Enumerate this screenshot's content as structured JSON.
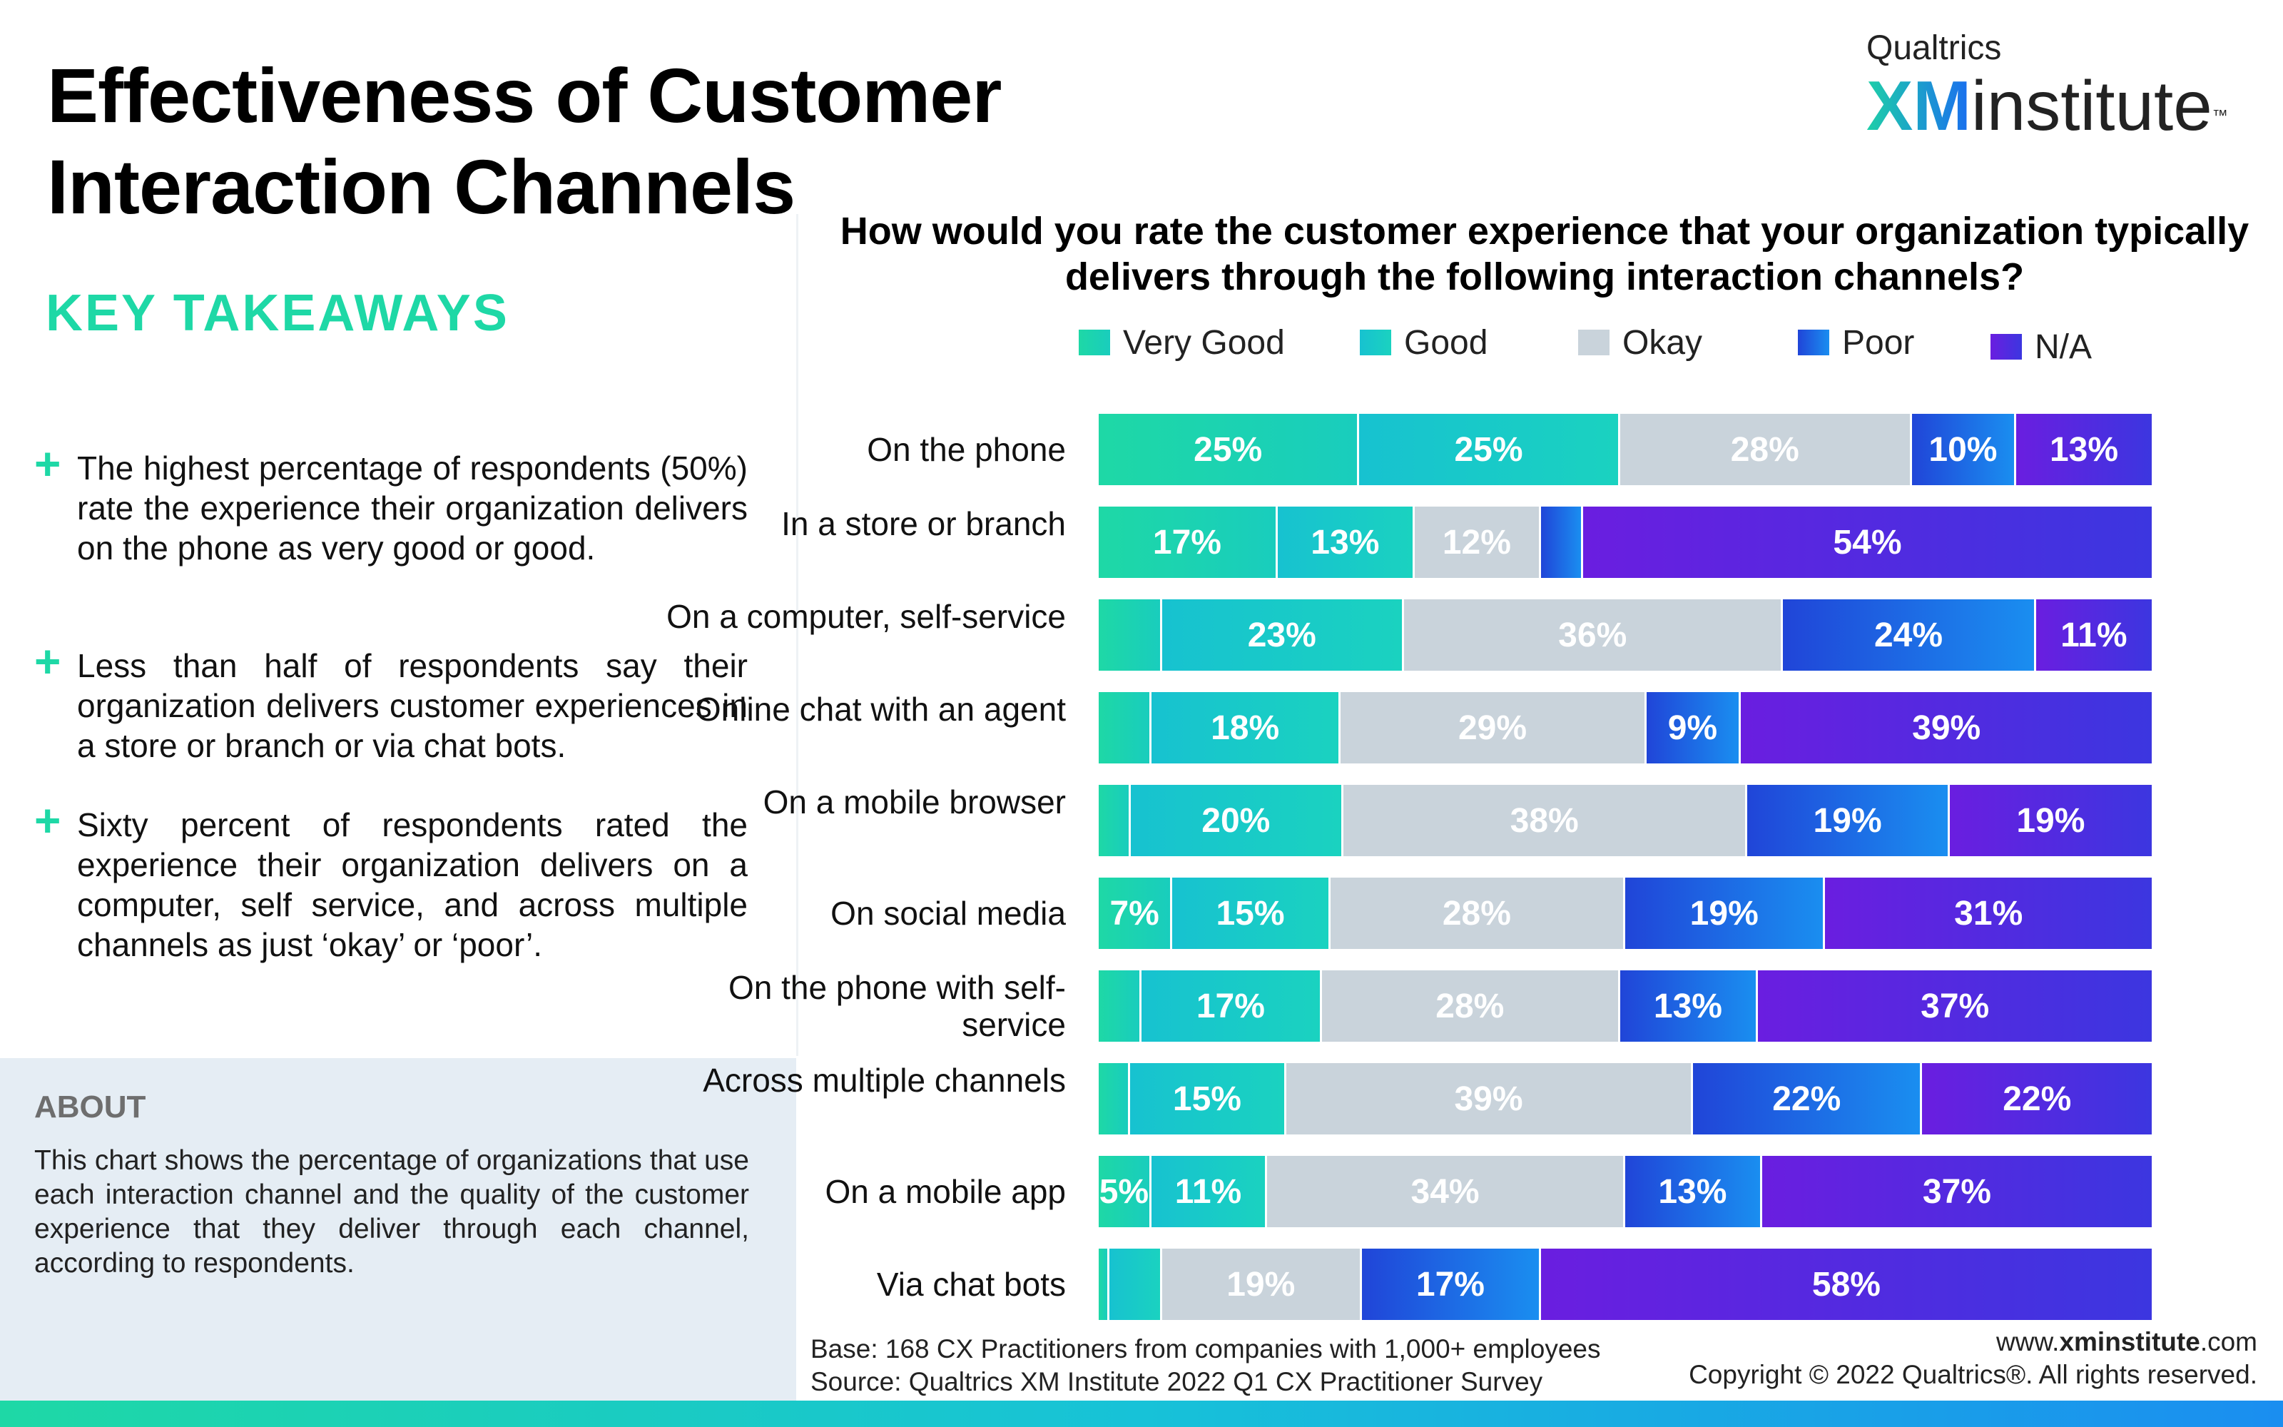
{
  "title": "Effectiveness of Customer Interaction Channels",
  "logo": {
    "brand_line": "Qualtrics",
    "xm": "XM",
    "word": "institute",
    "tm": "™"
  },
  "takeaways": {
    "heading": "KEY TAKEAWAYS",
    "items": [
      "The highest percentage of respondents (50%) rate the experience their organization delivers on the phone as very good or good.",
      "Less than half of respondents say their organization delivers customer experiences in a store or branch or via chat bots.",
      "Sixty percent of respondents rated the experience their organization delivers on a computer, self service, and across multiple channels as just ‘okay’ or ‘poor’."
    ]
  },
  "about": {
    "heading": "ABOUT",
    "text": "This chart shows the percentage of organizations that use each interaction channel and the quality of the customer experience that they deliver through each channel, according to respondents."
  },
  "footer": {
    "base": "Base: 168 CX Practitioners from companies with 1,000+ employees",
    "source": "Source: Qualtrics XM Institute 2022 Q1 CX Practitioner Survey",
    "site_prefix": "www.",
    "site_bold": "xminstitute",
    "site_suffix": ".com",
    "copyright": "Copyright © 2022 Qualtrics®. All rights reserved."
  },
  "colors": {
    "very_good": "#1ed8a6",
    "good": "#17c9c8",
    "okay": "#c9d3db",
    "poor": "#1b6fe8",
    "na": "#5a22e0",
    "accent": "#1ed8a6"
  },
  "chart_data": {
    "type": "bar",
    "orientation": "horizontal",
    "stacked": true,
    "title": "How would you rate the customer experience that your organization typically delivers through the following interaction channels?",
    "legend_position": "top",
    "categories": [
      "On the phone",
      "In a store or branch",
      "On a computer, self-service",
      "Online chat with an agent",
      "On a mobile browser",
      "On social media",
      "On the phone with self-service",
      "Across multiple channels",
      "On a mobile app",
      "Via chat bots"
    ],
    "series": [
      {
        "name": "Very Good",
        "values": [
          25,
          17,
          6,
          5,
          3,
          7,
          4,
          3,
          5,
          1
        ],
        "labels": [
          "25%",
          "17%",
          "",
          "",
          "",
          "7%",
          "",
          "",
          "5%",
          ""
        ]
      },
      {
        "name": "Good",
        "values": [
          25,
          13,
          23,
          18,
          20,
          15,
          17,
          15,
          11,
          5
        ],
        "labels": [
          "25%",
          "13%",
          "23%",
          "18%",
          "20%",
          "15%",
          "17%",
          "15%",
          "11%",
          ""
        ]
      },
      {
        "name": "Okay",
        "values": [
          28,
          12,
          36,
          29,
          38,
          28,
          28,
          39,
          34,
          19
        ],
        "labels": [
          "28%",
          "12%",
          "36%",
          "29%",
          "38%",
          "28%",
          "28%",
          "39%",
          "34%",
          "19%"
        ]
      },
      {
        "name": "Poor",
        "values": [
          10,
          4,
          24,
          9,
          19,
          19,
          13,
          22,
          13,
          17
        ],
        "labels": [
          "10%",
          "",
          "24%",
          "9%",
          "19%",
          "19%",
          "13%",
          "22%",
          "13%",
          "17%"
        ]
      },
      {
        "name": "N/A",
        "values": [
          13,
          54,
          11,
          39,
          19,
          31,
          37,
          22,
          37,
          58
        ],
        "labels": [
          "13%",
          "54%",
          "11%",
          "39%",
          "19%",
          "31%",
          "37%",
          "22%",
          "37%",
          "58%"
        ]
      }
    ],
    "xlim": [
      0,
      100
    ]
  }
}
